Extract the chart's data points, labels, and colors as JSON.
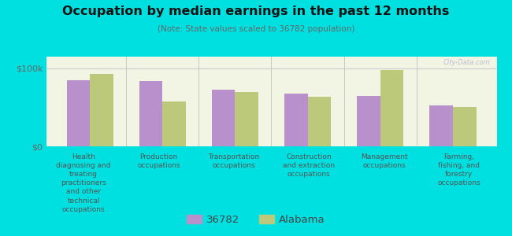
{
  "title": "Occupation by median earnings in the past 12 months",
  "subtitle": "(Note: State values scaled to 36782 population)",
  "categories": [
    "Health\ndiagnosing and\ntreating\npractitioners\nand other\ntechnical\noccupations",
    "Production\noccupations",
    "Transportation\noccupations",
    "Construction\nand extraction\noccupations",
    "Management\noccupations",
    "Farming,\nfishing, and\nforestry\noccupations"
  ],
  "values_36782": [
    85000,
    84000,
    73000,
    68000,
    65000,
    52000
  ],
  "values_alabama": [
    93000,
    58000,
    70000,
    64000,
    98000,
    50000
  ],
  "color_36782": "#b890cc",
  "color_alabama": "#bcc87a",
  "background_color": "#00e0e0",
  "plot_bg": "#f2f5e4",
  "ytick_labels": [
    "$0",
    "$100k"
  ],
  "ytick_values": [
    0,
    100000
  ],
  "ylim": [
    0,
    115000
  ],
  "legend_label_36782": "36782",
  "legend_label_alabama": "Alabama",
  "watermark": "City-Data.com",
  "bar_width": 0.32
}
